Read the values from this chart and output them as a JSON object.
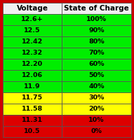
{
  "headers": [
    "Voltage",
    "State of Charge"
  ],
  "rows": [
    {
      "voltage": "12.6+",
      "charge": "100%",
      "color": "#00ee00"
    },
    {
      "voltage": "12.5",
      "charge": "90%",
      "color": "#00ee00"
    },
    {
      "voltage": "12.42",
      "charge": "80%",
      "color": "#00ee00"
    },
    {
      "voltage": "12.32",
      "charge": "70%",
      "color": "#00ee00"
    },
    {
      "voltage": "12.20",
      "charge": "60%",
      "color": "#00ee00"
    },
    {
      "voltage": "12.06",
      "charge": "50%",
      "color": "#00ee00"
    },
    {
      "voltage": "11.9",
      "charge": "40%",
      "color": "#00ee00"
    },
    {
      "voltage": "11.75",
      "charge": "30%",
      "color": "#ffff00"
    },
    {
      "voltage": "11.58",
      "charge": "20%",
      "color": "#ffff00"
    },
    {
      "voltage": "11.31",
      "charge": "10%",
      "color": "#dd0000"
    },
    {
      "voltage": "10.5",
      "charge": "0%",
      "color": "#dd0000"
    }
  ],
  "header_bg": "#f0f0f0",
  "border_color": "#cc0000",
  "text_color": "#000000",
  "header_text_color": "#000000",
  "font_size": 6.8,
  "header_font_size": 7.5,
  "col_split": 0.46
}
